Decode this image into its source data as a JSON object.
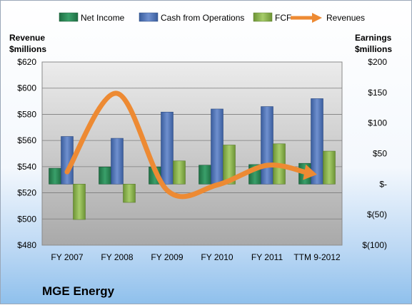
{
  "chart_data": {
    "type": "bar",
    "title": "MGE Energy",
    "categories": [
      "FY 2007",
      "FY 2008",
      "FY 2009",
      "FY 2010",
      "FY 2011",
      "TTM 9-2012"
    ],
    "y_left": {
      "label_line1": "Revenue",
      "label_line2": "$millions",
      "range": [
        480,
        620
      ],
      "ticks": [
        480,
        500,
        520,
        540,
        560,
        580,
        600,
        620
      ],
      "tick_labels": [
        "$480",
        "$500",
        "$520",
        "$540",
        "$560",
        "$580",
        "$600",
        "$620"
      ]
    },
    "y_right": {
      "label_line1": "Earnings",
      "label_line2": "$millions",
      "range": [
        -100,
        200
      ],
      "ticks": [
        -100,
        -50,
        0,
        50,
        100,
        150,
        200
      ],
      "tick_labels": [
        "$(100)",
        "$(50)",
        "$-",
        "$50",
        "$100",
        "$150",
        "$200"
      ]
    },
    "series": [
      {
        "name": "Net Income",
        "type": "bar",
        "axis": "right",
        "color": "#2e8b57",
        "values": [
          26,
          28,
          28,
          31,
          32,
          34
        ]
      },
      {
        "name": "Cash from Operations",
        "type": "bar",
        "axis": "right",
        "color": "#4f74b8",
        "values": [
          78,
          75,
          118,
          123,
          127,
          140
        ]
      },
      {
        "name": "FCF",
        "type": "bar",
        "axis": "right",
        "color": "#8cb54a",
        "values": [
          -58,
          -30,
          38,
          64,
          66,
          54
        ]
      },
      {
        "name": "Revenues",
        "type": "line",
        "axis": "left",
        "color": "#ed8a33",
        "values": [
          536,
          596,
          522,
          526,
          541,
          534
        ]
      }
    ],
    "legend_position": "top",
    "grid": true
  }
}
